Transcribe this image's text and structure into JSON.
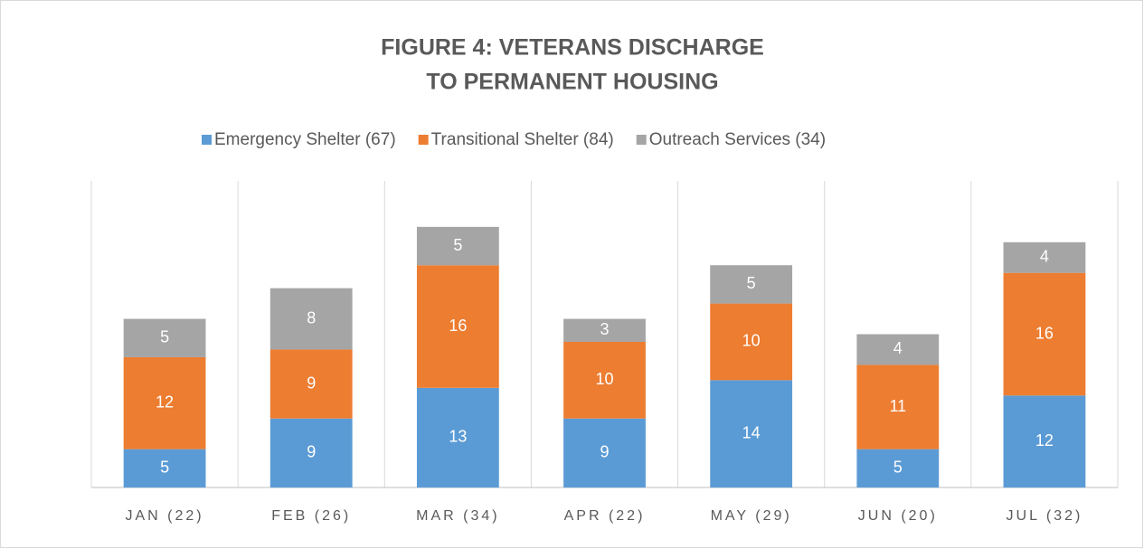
{
  "chart_data": {
    "type": "stacked_bar",
    "title": [
      "FIGURE 4: VETERANS DISCHARGE",
      "TO PERMANENT HOUSING"
    ],
    "categories": [
      "JAN (22)",
      "FEB (26)",
      "MAR (34)",
      "APR (22)",
      "MAY (29)",
      "JUN (20)",
      "JUL (32)"
    ],
    "series": [
      {
        "name": "Emergency Shelter (67)",
        "color": "#5b9bd5",
        "values": [
          5,
          9,
          13,
          9,
          14,
          5,
          12
        ]
      },
      {
        "name": "Transitional Shelter (84)",
        "color": "#ed7d31",
        "values": [
          12,
          9,
          16,
          10,
          10,
          11,
          16
        ]
      },
      {
        "name": "Outreach Services (34)",
        "color": "#a5a5a5",
        "values": [
          5,
          8,
          5,
          3,
          5,
          4,
          4
        ]
      }
    ],
    "ylim": [
      0,
      40
    ],
    "legend": "top"
  }
}
